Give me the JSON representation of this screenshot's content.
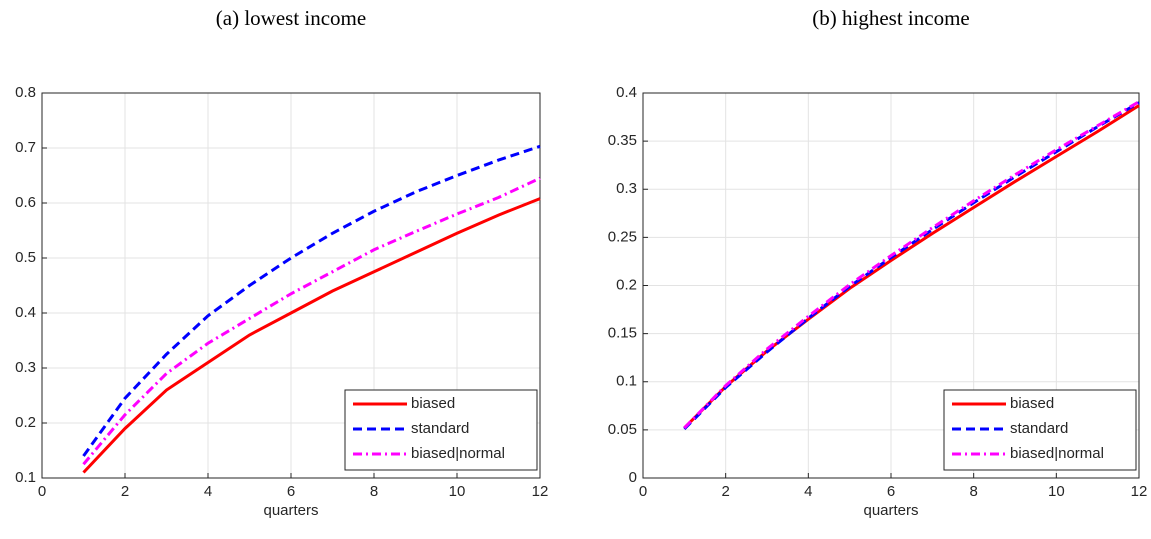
{
  "chart_data": [
    {
      "type": "line",
      "title": "(a) lowest income",
      "xlabel": "quarters",
      "x": [
        1,
        2,
        3,
        4,
        5,
        6,
        7,
        8,
        9,
        10,
        11,
        12
      ],
      "xlim": [
        0,
        12
      ],
      "xticks": [
        0,
        2,
        4,
        6,
        8,
        10,
        12
      ],
      "ylim": [
        0.1,
        0.8
      ],
      "yticks": [
        0.1,
        0.2,
        0.3,
        0.4,
        0.5,
        0.6,
        0.7,
        0.8
      ],
      "grid": true,
      "legend": "lower right",
      "series": [
        {
          "name": "biased",
          "color": "#ff0000",
          "linestyle": "solid",
          "values": [
            0.11,
            0.19,
            0.26,
            0.31,
            0.36,
            0.4,
            0.44,
            0.475,
            0.51,
            0.545,
            0.578,
            0.608
          ]
        },
        {
          "name": "standard",
          "color": "#0000ff",
          "linestyle": "dashed",
          "values": [
            0.14,
            0.245,
            0.325,
            0.395,
            0.45,
            0.5,
            0.545,
            0.585,
            0.62,
            0.65,
            0.678,
            0.703
          ]
        },
        {
          "name": "biased|normal",
          "color": "#ff00ff",
          "linestyle": "dashdot",
          "values": [
            0.125,
            0.215,
            0.29,
            0.345,
            0.39,
            0.435,
            0.475,
            0.515,
            0.548,
            0.58,
            0.61,
            0.645
          ]
        }
      ]
    },
    {
      "type": "line",
      "title": "(b) highest income",
      "xlabel": "quarters",
      "x": [
        1,
        2,
        3,
        4,
        5,
        6,
        7,
        8,
        9,
        10,
        11,
        12
      ],
      "xlim": [
        0,
        12
      ],
      "xticks": [
        0,
        2,
        4,
        6,
        8,
        10,
        12
      ],
      "ylim": [
        0,
        0.4
      ],
      "yticks": [
        0,
        0.05,
        0.1,
        0.15,
        0.2,
        0.25,
        0.3,
        0.35,
        0.4
      ],
      "grid": true,
      "legend": "lower right",
      "series": [
        {
          "name": "biased",
          "color": "#ff0000",
          "linestyle": "solid",
          "values": [
            0.052,
            0.095,
            0.132,
            0.165,
            0.197,
            0.226,
            0.254,
            0.281,
            0.308,
            0.334,
            0.36,
            0.387
          ]
        },
        {
          "name": "standard",
          "color": "#0000ff",
          "linestyle": "dashed",
          "values": [
            0.051,
            0.094,
            0.131,
            0.166,
            0.199,
            0.229,
            0.258,
            0.286,
            0.313,
            0.339,
            0.365,
            0.39
          ]
        },
        {
          "name": "biased|normal",
          "color": "#ff00ff",
          "linestyle": "dashdot",
          "values": [
            0.052,
            0.096,
            0.134,
            0.168,
            0.201,
            0.231,
            0.26,
            0.288,
            0.315,
            0.341,
            0.366,
            0.391
          ]
        }
      ]
    }
  ]
}
